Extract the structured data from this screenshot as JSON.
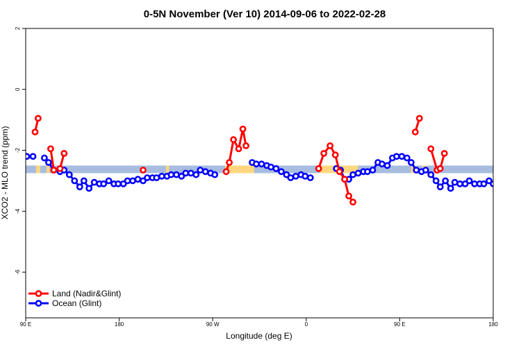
{
  "chart_data": {
    "type": "line",
    "title": "0-5N November (Ver 10)   2014-09-06 to 2022-02-28",
    "xlabel": "Longitude (deg E)",
    "ylabel": "XCO2 - MLO trend (ppm)",
    "xlim": [
      90,
      540
    ],
    "ylim": [
      -7.5,
      2
    ],
    "x_ticks": [
      {
        "value": 90,
        "label": "90 E"
      },
      {
        "value": 180,
        "label": "180"
      },
      {
        "value": 270,
        "label": "90 W"
      },
      {
        "value": 360,
        "label": "0"
      },
      {
        "value": 450,
        "label": "90 E"
      },
      {
        "value": 540,
        "label": "180"
      }
    ],
    "y_ticks": [
      -6,
      -4,
      -2,
      0,
      2
    ],
    "band": {
      "ymin": -2.75,
      "ymax": -2.5,
      "ocean_color": "#a7bcdf",
      "land_color": "#ffd77f"
    },
    "land_spans": [
      [
        100,
        104
      ],
      [
        110,
        113
      ],
      [
        225,
        228
      ],
      [
        282,
        310
      ],
      [
        373,
        410
      ],
      [
        461,
        465
      ],
      [
        472,
        476
      ]
    ],
    "legend": {
      "position": "bottom-left"
    },
    "series": [
      {
        "name": "Land (Nadir&Glint)",
        "color": "#ff0000",
        "segments": [
          [
            [
              99,
              -1.4
            ],
            [
              102,
              -0.95
            ]
          ],
          [
            [
              114,
              -1.95
            ],
            [
              117,
              -2.65
            ],
            [
              123,
              -2.6
            ],
            [
              127,
              -2.1
            ]
          ],
          [
            [
              203,
              -2.65
            ]
          ],
          [
            [
              283,
              -2.7
            ],
            [
              286,
              -2.4
            ],
            [
              290,
              -1.65
            ],
            [
              295,
              -1.95
            ],
            [
              299,
              -1.3
            ],
            [
              302,
              -1.85
            ]
          ],
          [
            [
              372,
              -2.6
            ],
            [
              377,
              -2.1
            ],
            [
              383,
              -1.85
            ],
            [
              388,
              -2.15
            ],
            [
              392,
              -2.7
            ],
            [
              397,
              -2.95
            ],
            [
              401,
              -3.5
            ],
            [
              405,
              -3.7
            ]
          ],
          [
            [
              465,
              -1.4
            ],
            [
              469,
              -0.95
            ]
          ],
          [
            [
              480,
              -1.95
            ],
            [
              486,
              -2.65
            ],
            [
              489,
              -2.6
            ],
            [
              493,
              -2.1
            ]
          ]
        ]
      },
      {
        "name": "Ocean (Glint)",
        "color": "#0000ff",
        "segments": [
          [
            [
              91,
              -2.2
            ],
            [
              97,
              -2.2
            ]
          ],
          [
            [
              108,
              -2.25
            ],
            [
              112,
              -2.4
            ],
            [
              117,
              -2.65
            ],
            [
              123,
              -2.7
            ],
            [
              127,
              -2.65
            ],
            [
              132,
              -2.8
            ],
            [
              137,
              -3.0
            ],
            [
              142,
              -3.2
            ],
            [
              146,
              -3.0
            ],
            [
              151,
              -3.25
            ],
            [
              156,
              -3.05
            ],
            [
              161,
              -3.1
            ],
            [
              165,
              -3.1
            ],
            [
              170,
              -3.0
            ],
            [
              175,
              -3.1
            ],
            [
              179,
              -3.1
            ],
            [
              184,
              -3.1
            ],
            [
              188,
              -3.0
            ],
            [
              193,
              -3.0
            ],
            [
              198,
              -2.95
            ],
            [
              203,
              -3.0
            ],
            [
              207,
              -2.9
            ],
            [
              212,
              -2.9
            ],
            [
              216,
              -2.9
            ],
            [
              221,
              -2.85
            ],
            [
              226,
              -2.85
            ],
            [
              230,
              -2.8
            ],
            [
              235,
              -2.8
            ],
            [
              240,
              -2.85
            ],
            [
              244,
              -2.75
            ],
            [
              249,
              -2.75
            ],
            [
              254,
              -2.8
            ],
            [
              258,
              -2.65
            ],
            [
              263,
              -2.7
            ],
            [
              268,
              -2.75
            ],
            [
              272,
              -2.8
            ]
          ],
          [
            [
              308,
              -2.4
            ],
            [
              312,
              -2.45
            ],
            [
              317,
              -2.45
            ],
            [
              322,
              -2.5
            ],
            [
              326,
              -2.55
            ],
            [
              331,
              -2.6
            ],
            [
              336,
              -2.7
            ],
            [
              341,
              -2.8
            ],
            [
              345,
              -2.9
            ],
            [
              350,
              -2.85
            ],
            [
              355,
              -2.8
            ],
            [
              359,
              -2.85
            ],
            [
              364,
              -2.9
            ]
          ],
          [
            [
              389,
              -2.6
            ],
            [
              393,
              -2.65
            ],
            [
              397,
              -2.95
            ],
            [
              401,
              -2.95
            ],
            [
              405,
              -2.8
            ],
            [
              410,
              -2.75
            ],
            [
              415,
              -2.7
            ],
            [
              419,
              -2.7
            ],
            [
              424,
              -2.65
            ],
            [
              429,
              -2.4
            ],
            [
              433,
              -2.45
            ],
            [
              438,
              -2.5
            ],
            [
              443,
              -2.25
            ],
            [
              447,
              -2.2
            ],
            [
              452,
              -2.2
            ]
          ],
          [
            [
              457,
              -2.25
            ],
            [
              461,
              -2.4
            ],
            [
              466,
              -2.65
            ],
            [
              471,
              -2.7
            ],
            [
              475,
              -2.65
            ],
            [
              480,
              -2.8
            ],
            [
              485,
              -3.0
            ],
            [
              489,
              -3.2
            ],
            [
              494,
              -3.0
            ],
            [
              499,
              -3.25
            ],
            [
              503,
              -3.05
            ],
            [
              508,
              -3.1
            ],
            [
              513,
              -3.1
            ],
            [
              517,
              -3.0
            ],
            [
              522,
              -3.1
            ],
            [
              527,
              -3.1
            ],
            [
              531,
              -3.1
            ],
            [
              536,
              -3.0
            ],
            [
              540,
              -3.1
            ]
          ]
        ]
      }
    ]
  }
}
